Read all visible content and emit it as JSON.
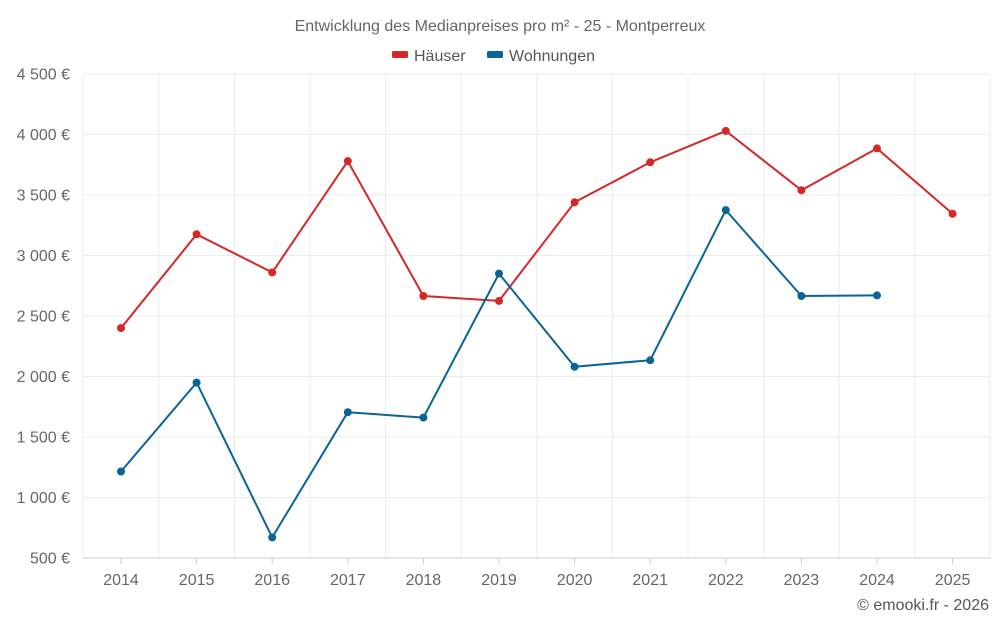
{
  "chart_data": {
    "type": "line",
    "title": "Entwicklung des Medianpreises pro m² - 25 - Montperreux",
    "categories": [
      "2014",
      "2015",
      "2016",
      "2017",
      "2018",
      "2019",
      "2020",
      "2021",
      "2022",
      "2023",
      "2024",
      "2025"
    ],
    "series": [
      {
        "name": "Häuser",
        "color": "#d62728",
        "values": [
          2400,
          3175,
          2860,
          3780,
          2665,
          2625,
          3440,
          3770,
          4030,
          3540,
          3885,
          3345
        ]
      },
      {
        "name": "Wohnungen",
        "color": "#0b6496",
        "values": [
          1215,
          1950,
          670,
          1705,
          1660,
          2850,
          2080,
          2135,
          3375,
          2665,
          2670,
          null
        ]
      }
    ],
    "ylim": [
      500,
      4500
    ],
    "yticks": [
      500,
      1000,
      1500,
      2000,
      2500,
      3000,
      3500,
      4000,
      4500
    ],
    "ytick_labels": [
      "500 €",
      "1 000 €",
      "1 500 €",
      "2 000 €",
      "2 500 €",
      "3 000 €",
      "3 500 €",
      "4 000 €",
      "4 500 €"
    ],
    "grid": true,
    "legend_position": "top-center",
    "footer": "© emooki.fr - 2026"
  }
}
